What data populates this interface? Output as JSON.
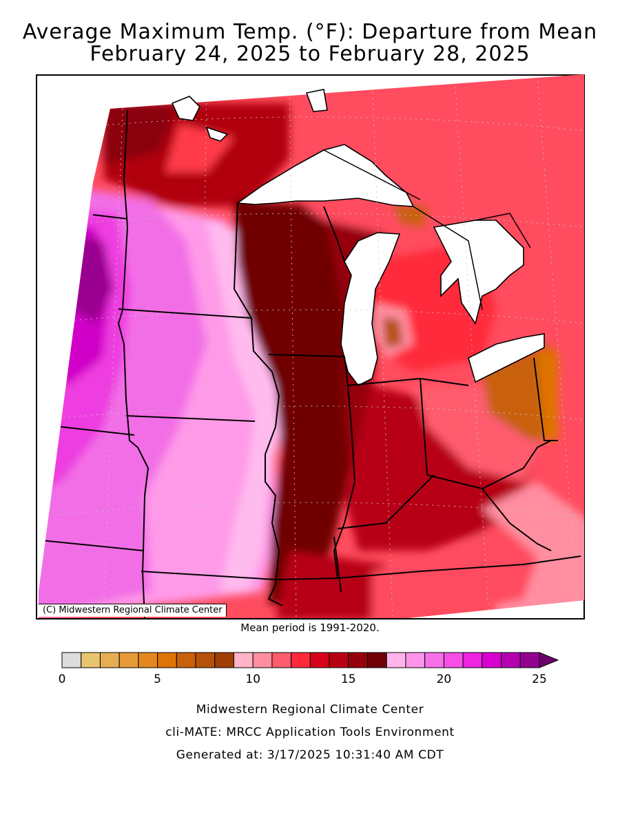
{
  "title": {
    "line1": "Average Maximum Temp. (°F): Departure from Mean",
    "line2": "February 24, 2025 to February 28, 2025"
  },
  "map": {
    "copyright": "(C) Midwestern Regional Climate Center",
    "mean_period": "Mean period is 1991-2020."
  },
  "legend": {
    "tick_labels": [
      "0",
      "5",
      "10",
      "15",
      "20",
      "25"
    ],
    "colors": [
      "#dcdcdc",
      "#e8c46e",
      "#e6ae52",
      "#e69b38",
      "#e4871f",
      "#de7306",
      "#c8610b",
      "#b5510a",
      "#9e3f06",
      "#ffb4c8",
      "#ff8ea0",
      "#ff5c6e",
      "#ff2a3a",
      "#d8001a",
      "#b70012",
      "#96000c",
      "#700006",
      "#ffb4ec",
      "#ff94ea",
      "#f670e8",
      "#f84ee8",
      "#ee24e0",
      "#d800d0",
      "#b400b0",
      "#920090",
      "#6e006e"
    ],
    "arrow_color": "#6e006e"
  },
  "footer": {
    "line1": "Midwestern Regional Climate Center",
    "line2": "cli-MATE: MRCC Application Tools Environment",
    "line3": "Generated at: 3/17/2025 10:31:40 AM CDT"
  }
}
